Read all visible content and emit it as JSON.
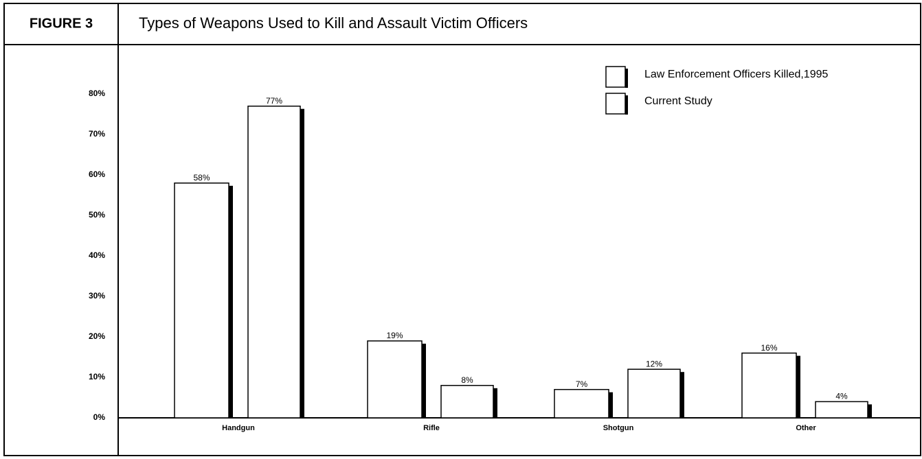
{
  "chart_data": {
    "type": "bar",
    "figure_label": "FIGURE 3",
    "title": "Types of Weapons Used to Kill and Assault Victim Officers",
    "categories": [
      "Handgun",
      "Rifle",
      "Shotgun",
      "Other"
    ],
    "series": [
      {
        "name": "Law Enforcement Officers Killed,1995",
        "color": "#ffffff",
        "values": [
          58,
          19,
          7,
          16
        ],
        "value_labels": [
          "58%",
          "19%",
          "7%",
          "16%"
        ]
      },
      {
        "name": "Current Study",
        "color": "#ffffff",
        "values": [
          77,
          8,
          12,
          4
        ],
        "value_labels": [
          "77%",
          "8%",
          "12%",
          "4%"
        ]
      }
    ],
    "ylim": [
      0,
      90
    ],
    "yticks": [
      {
        "value": 0,
        "label": "0%"
      },
      {
        "value": 10,
        "label": "10%"
      },
      {
        "value": 20,
        "label": "20%"
      },
      {
        "value": 30,
        "label": "30%"
      },
      {
        "value": 40,
        "label": "40%"
      },
      {
        "value": 50,
        "label": "50%"
      },
      {
        "value": 60,
        "label": "60%"
      },
      {
        "value": 70,
        "label": "70%"
      },
      {
        "value": 80,
        "label": "80%"
      }
    ],
    "grid": false
  }
}
